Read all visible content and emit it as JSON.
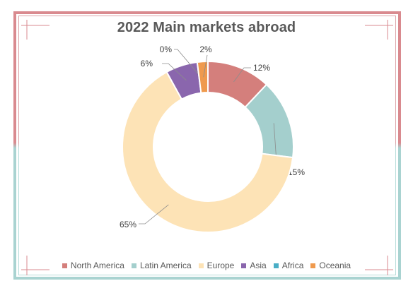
{
  "chart_data": {
    "type": "donut",
    "title": "2022 Main markets abroad",
    "categories": [
      "North America",
      "Latin America",
      "Europe",
      "Asia",
      "Africa",
      "Oceania"
    ],
    "values": [
      12,
      15,
      65,
      6,
      0,
      2
    ],
    "data_labels": [
      "12%",
      "15%",
      "65%",
      "6%",
      "0%",
      "2%"
    ],
    "colors": [
      "#d47f7c",
      "#a4cfcd",
      "#fde3b6",
      "#8a66ad",
      "#4aaec6",
      "#ef9a4e"
    ],
    "legend_position": "bottom",
    "grid": false
  }
}
